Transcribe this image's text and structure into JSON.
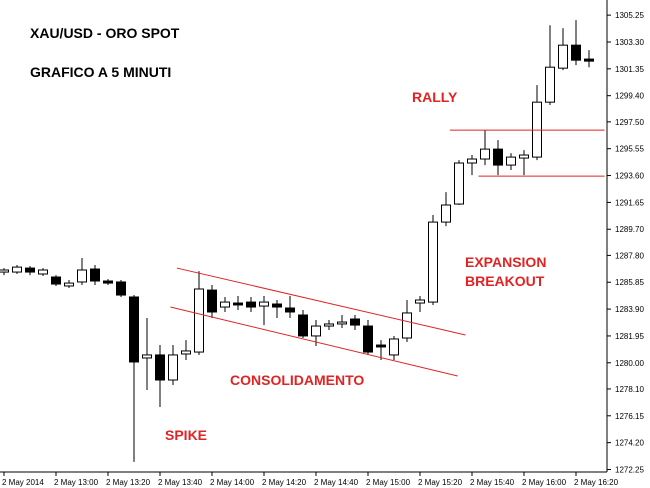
{
  "chart_data": {
    "type": "candlestick",
    "title": "XAU/USD - ORO SPOT",
    "subtitle": "GRAFICO A 5 MINUTI",
    "annotations": [
      {
        "text": "RALLY",
        "color": "#e02424"
      },
      {
        "text": "EXPANSION",
        "color": "#e02424"
      },
      {
        "text": "BREAKOUT",
        "color": "#e02424"
      },
      {
        "text": "CONSOLIDAMENTO",
        "color": "#e02424"
      },
      {
        "text": "SPIKE",
        "color": "#e02424"
      }
    ],
    "categories": [
      "2 May 2014",
      null,
      null,
      null,
      "2 May 13:00",
      null,
      null,
      null,
      "2 May 13:20",
      null,
      null,
      null,
      "2 May 13:40",
      null,
      null,
      null,
      "2 May 14:00",
      null,
      null,
      null,
      "2 May 14:20",
      null,
      null,
      null,
      "2 May 14:40",
      null,
      null,
      null,
      "2 May 15:00",
      null,
      null,
      null,
      "2 May 15:20",
      null,
      null,
      null,
      "2 May 15:40",
      null,
      null,
      null,
      "2 May 16:00",
      null,
      null,
      null,
      "2 May 16:20",
      null
    ],
    "open": [
      1286.59,
      1286.59,
      1286.88,
      1286.45,
      1286.23,
      1285.58,
      1285.87,
      1286.81,
      1285.94,
      1285.87,
      1284.78,
      1280.35,
      1280.57,
      1278.75,
      1280.64,
      1280.78,
      1285.28,
      1284.05,
      1284.34,
      1284.41,
      1284.12,
      1284.27,
      1283.98,
      1283.47,
      1281.95,
      1282.67,
      1282.82,
      1283.18,
      1282.67,
      1281.29,
      1280.57,
      1281.8,
      1284.34,
      1284.41,
      1290.22,
      1291.53,
      1294.51,
      1294.8,
      1295.52,
      1294.36,
      1294.87,
      1294.94,
      1298.93,
      1301.4,
      1303.07,
      1302.06
    ],
    "high": [
      1286.88,
      1287.1,
      1287.03,
      1286.88,
      1286.37,
      1286.01,
      1287.61,
      1287.1,
      1286.08,
      1286.01,
      1284.92,
      1283.25,
      1281.29,
      1281.29,
      1281.65,
      1286.66,
      1285.65,
      1284.78,
      1284.85,
      1284.78,
      1284.85,
      1284.56,
      1284.85,
      1283.83,
      1283.11,
      1283.11,
      1283.47,
      1283.47,
      1283.11,
      1281.65,
      1281.95,
      1284.56,
      1284.85,
      1290.73,
      1292.4,
      1294.72,
      1295.09,
      1296.9,
      1296.17,
      1295.23,
      1295.45,
      1300.17,
      1304.52,
      1304.31,
      1304.89,
      1302.71
    ],
    "low": [
      1286.37,
      1286.45,
      1286.37,
      1286.3,
      1285.58,
      1285.43,
      1285.65,
      1285.65,
      1285.65,
      1284.78,
      1272.8,
      1278.02,
      1276.79,
      1278.39,
      1280.2,
      1280.57,
      1283.25,
      1283.69,
      1283.83,
      1283.69,
      1282.74,
      1283.25,
      1283.25,
      1281.8,
      1281.22,
      1282.38,
      1282.53,
      1282.38,
      1280.57,
      1280.2,
      1280.2,
      1281.51,
      1283.69,
      1284.2,
      1289.93,
      1291.46,
      1293.63,
      1294.36,
      1293.63,
      1294.0,
      1293.63,
      1294.72,
      1298.72,
      1301.26,
      1301.62,
      1301.47
    ],
    "close": [
      1286.74,
      1286.95,
      1286.59,
      1286.74,
      1285.72,
      1285.79,
      1286.74,
      1285.94,
      1285.79,
      1284.92,
      1280.06,
      1280.57,
      1278.75,
      1280.57,
      1280.86,
      1285.36,
      1283.69,
      1284.41,
      1284.2,
      1284.05,
      1284.41,
      1284.05,
      1283.69,
      1281.95,
      1282.67,
      1282.82,
      1282.96,
      1282.74,
      1280.78,
      1281.15,
      1281.73,
      1283.62,
      1284.56,
      1290.22,
      1291.46,
      1294.51,
      1294.8,
      1295.52,
      1294.36,
      1294.94,
      1295.09,
      1298.93,
      1301.47,
      1303.07,
      1301.98,
      1301.91
    ],
    "up_color": "#ffffff",
    "down_color": "#000000",
    "trend_lines": [
      {
        "from": [
          13.3,
          1286.88
        ],
        "to": [
          35.5,
          1282.02
        ],
        "color": "#e02424"
      },
      {
        "from": [
          12.8,
          1284.05
        ],
        "to": [
          34.9,
          1279.04
        ],
        "color": "#e02424"
      },
      {
        "from": [
          34.3,
          1296.9
        ],
        "to": [
          46.2,
          1296.9
        ],
        "color": "#e02424"
      },
      {
        "from": [
          36.5,
          1293.56
        ],
        "to": [
          46.2,
          1293.56
        ],
        "color": "#e02424"
      }
    ],
    "ylim": [
      1271.85,
      1306.35
    ],
    "yticks": [
      1305.25,
      {
        "value": 1303.3,
        "label": "1303.30"
      },
      1301.35,
      {
        "value": 1299.4,
        "label": "1299.40"
      },
      {
        "value": 1297.5,
        "label": "1297.50"
      },
      1295.55,
      {
        "value": 1293.6,
        "label": "1293.60"
      },
      1291.65,
      {
        "value": 1289.7,
        "label": "1289.70"
      },
      {
        "value": 1287.8,
        "label": "1287.80"
      },
      1285.85,
      {
        "value": 1283.9,
        "label": "1283.90"
      },
      1281.95,
      {
        "value": 1280,
        "label": "1280.00"
      },
      {
        "value": 1278.1,
        "label": "1278.10"
      },
      1276.15,
      {
        "value": 1274.2,
        "label": "1274.20"
      },
      1272.25
    ],
    "grid": false
  }
}
